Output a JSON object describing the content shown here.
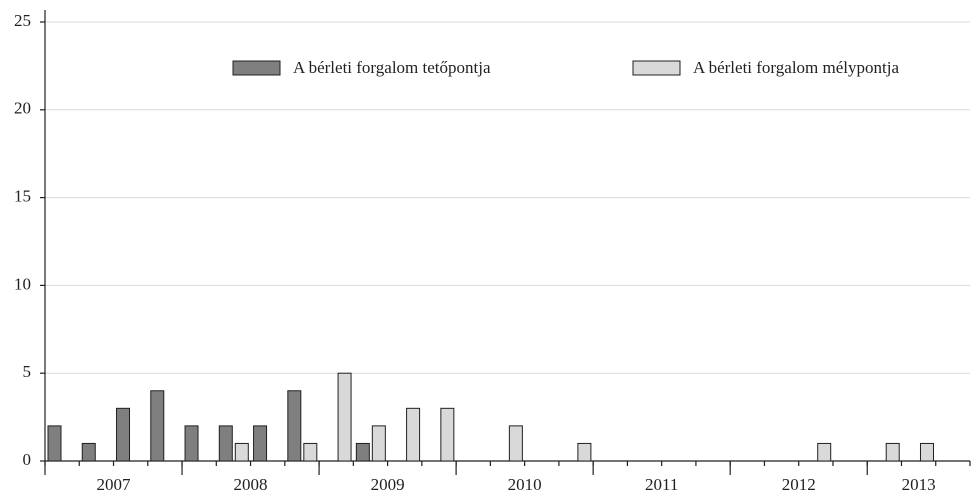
{
  "chart_data": {
    "type": "bar",
    "categories": [
      null,
      null,
      null,
      null,
      null,
      null,
      null,
      null,
      null,
      null,
      null,
      null,
      null,
      null,
      null,
      null,
      null,
      null,
      null,
      null,
      null,
      null,
      null,
      null,
      null,
      null,
      null
    ],
    "groups": [
      {
        "label": "2007",
        "count": 4
      },
      {
        "label": "2008",
        "count": 4
      },
      {
        "label": "2009",
        "count": 4
      },
      {
        "label": "2010",
        "count": 4
      },
      {
        "label": "2011",
        "count": 4
      },
      {
        "label": "2012",
        "count": 4
      },
      {
        "label": "2013",
        "count": 3
      }
    ],
    "series": [
      {
        "name": "A bérleti forgalom tetőpontja",
        "color": "#7f7f7f",
        "values": [
          2,
          1,
          3,
          4,
          2,
          2,
          2,
          4,
          0,
          1,
          0,
          0,
          0,
          0,
          0,
          0,
          0,
          0,
          0,
          0,
          0,
          0,
          0,
          0,
          0,
          0,
          0
        ]
      },
      {
        "name": "A bérleti forgalom mélypontja",
        "color": "#d9d9d9",
        "values": [
          0,
          0,
          0,
          0,
          0,
          1,
          0,
          1,
          5,
          2,
          3,
          3,
          0,
          2,
          0,
          1,
          0,
          0,
          0,
          0,
          0,
          0,
          1,
          0,
          1,
          1,
          0
        ]
      }
    ],
    "ylim": [
      0,
      25
    ],
    "yticks": [
      0,
      5,
      10,
      15,
      20,
      25
    ],
    "grid": true,
    "legend": "top"
  }
}
